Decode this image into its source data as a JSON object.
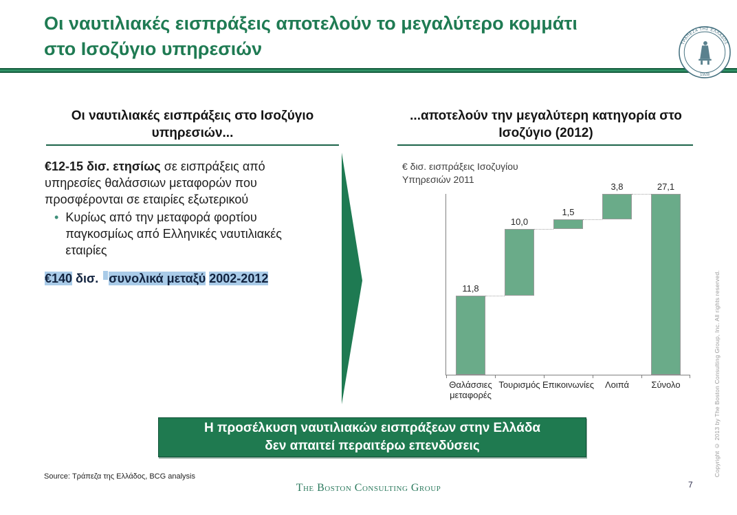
{
  "title": {
    "line1": "Οι ναυτιλιακές εισπράξεις αποτελούν το μεγαλύτερο κομμάτι",
    "line2": "στο Ισοζύγιο υπηρεσιών"
  },
  "logo": {
    "ring_text": "ΤΡΑΠΕΖΑ ΤΗΣ ΕΛΛΑΔΟΣ",
    "year": "1928"
  },
  "left_panel": {
    "header": "Οι ναυτιλιακές εισπράξεις στο Ισοζύγιο υπηρεσιών...",
    "para_bold": "€12-15 δισ. ετησίως",
    "para_rest": " σε εισπράξεις από υπηρεσίες θαλάσσιων μεταφορών που προσφέρονται σε εταιρίες εξωτερικού",
    "bullet": "Κυρίως από την μεταφορά φορτίου παγκοσμίως από Ελληνικές ναυτιλιακές εταιρίες",
    "highlight_1": "€140",
    "highlight_mid": " δισ. ",
    "highlight_2": "συνολικά μεταξύ",
    "highlight_3": "2002-2012"
  },
  "right_panel": {
    "header": "...αποτελούν την μεγαλύτερη κατηγορία στο Ισοζύγιο (2012)",
    "chart_label_line1": "€ δισ. εισπράξεις Ισοζυγίου",
    "chart_label_line2": "Υπηρεσιών 2011"
  },
  "chart_data": {
    "type": "bar",
    "subtype": "waterfall",
    "title": "€ δισ. εισπράξεις Ισοζυγίου Υπηρεσιών 2011",
    "categories": [
      "Θαλάσσιες μεταφορές",
      "Τουρισμός",
      "Επικοινωνίες",
      "Λοιπά",
      "Σύνολο"
    ],
    "values": [
      11.8,
      10.0,
      1.5,
      3.8,
      27.1
    ],
    "value_labels": [
      "11,8",
      "10,0",
      "1,5",
      "3,8",
      "27,1"
    ],
    "is_total": [
      false,
      false,
      false,
      false,
      true
    ],
    "ylim": [
      0,
      27.1
    ],
    "grid": false,
    "legend": null,
    "bar_color": "#6aab89",
    "bar_border": "#999999"
  },
  "banner": {
    "line1": "Η προσέλκυση ναυτιλιακών εισπράξεων στην Ελλάδα",
    "line2": "δεν απαιτεί περαιτέρω επενδύσεις"
  },
  "footer": {
    "source": "Source: Τράπεζα της Ελλάδος, BCG analysis",
    "brand": "The Boston Consulting Group",
    "page": "7"
  },
  "copyright_vertical": "Copyright © 2013 by The Boston Consulting Group, Inc. All rights reserved.",
  "colors": {
    "title_green": "#1f7b53",
    "banner_green": "#1f7a50",
    "highlight_blue": "#a9cbe8",
    "bar_green": "#6aab89",
    "arrow_green": "#1e7a52"
  }
}
